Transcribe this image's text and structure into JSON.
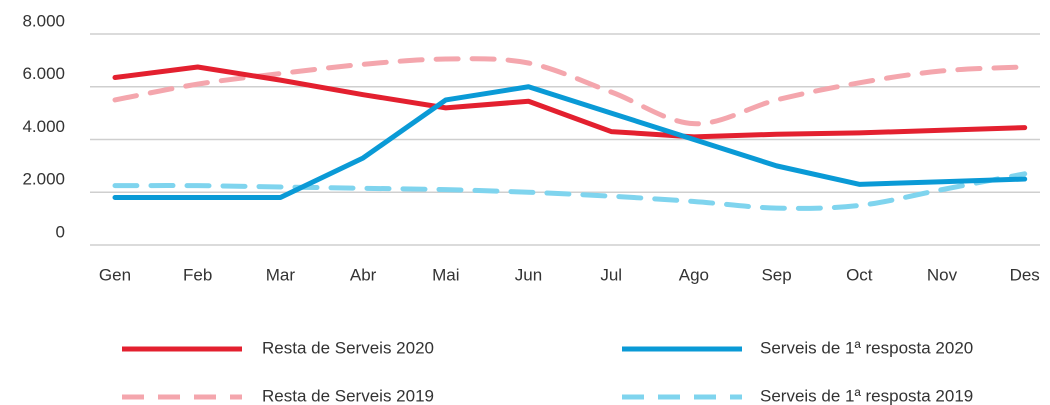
{
  "chart_data": {
    "type": "line",
    "categories": [
      "Gen",
      "Feb",
      "Mar",
      "Abr",
      "Mai",
      "Jun",
      "Jul",
      "Ago",
      "Sep",
      "Oct",
      "Nov",
      "Des"
    ],
    "series": [
      {
        "name": "Resta de Serveis 2020",
        "color": "#e3202f",
        "dashed": false,
        "smooth": false,
        "values": [
          6350,
          6750,
          6250,
          5700,
          5200,
          5450,
          4300,
          4100,
          4200,
          4250,
          4350,
          4450
        ]
      },
      {
        "name": "Serveis de 1ª resposta 2020",
        "color": "#0a9ad6",
        "dashed": false,
        "smooth": false,
        "values": [
          1800,
          1800,
          1800,
          3300,
          5500,
          6000,
          5000,
          4000,
          3000,
          2300,
          2400,
          2500
        ]
      },
      {
        "name": "Resta de Serveis 2019",
        "color": "#f4a6ad",
        "dashed": true,
        "smooth": true,
        "values": [
          5500,
          6100,
          6500,
          6850,
          7050,
          6900,
          5800,
          4600,
          5500,
          6150,
          6600,
          6750
        ]
      },
      {
        "name": "Serveis de 1ª resposta 2019",
        "color": "#7fd4ee",
        "dashed": true,
        "smooth": true,
        "values": [
          2250,
          2250,
          2200,
          2150,
          2100,
          2000,
          1850,
          1650,
          1400,
          1500,
          2100,
          2700
        ]
      }
    ],
    "ylim": [
      0,
      8000
    ],
    "yticks": [
      0,
      {
        "value": 2000,
        "label": "2.000"
      },
      {
        "value": 4000,
        "label": "4.000"
      },
      {
        "value": 6000,
        "label": "6.000"
      },
      {
        "value": 8000,
        "label": "8.000"
      }
    ],
    "grid": true
  }
}
